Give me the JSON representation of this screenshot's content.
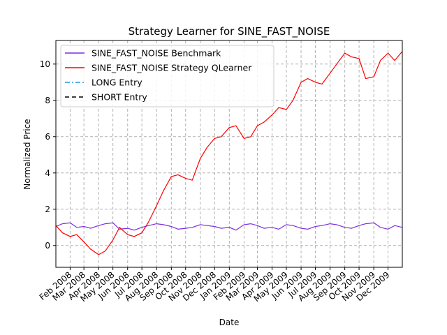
{
  "chart_data": {
    "type": "line",
    "title": "Strategy Learner for SINE_FAST_NOISE",
    "xlabel": "Date",
    "ylabel": "Normalized Price",
    "xlim": [
      "2008-01-02",
      "2009-12-31"
    ],
    "ylim": [
      -1.2,
      11.3
    ],
    "grid": true,
    "legend_position": "upper left",
    "y_ticks": [
      0,
      2,
      4,
      6,
      8,
      10
    ],
    "x_ticks": [
      {
        "date": "2008-02-01",
        "label": "Feb 2008"
      },
      {
        "date": "2008-03-01",
        "label": "Mar 2008"
      },
      {
        "date": "2008-04-01",
        "label": "Apr 2008"
      },
      {
        "date": "2008-05-01",
        "label": "May 2008"
      },
      {
        "date": "2008-06-01",
        "label": "Jun 2008"
      },
      {
        "date": "2008-07-01",
        "label": "Jul 2008"
      },
      {
        "date": "2008-08-01",
        "label": "Aug 2008"
      },
      {
        "date": "2008-09-01",
        "label": "Sep 2008"
      },
      {
        "date": "2008-10-01",
        "label": "Oct 2008"
      },
      {
        "date": "2008-11-01",
        "label": "Nov 2008"
      },
      {
        "date": "2008-12-01",
        "label": "Dec 2008"
      },
      {
        "date": "2009-01-01",
        "label": "Jan 2009"
      },
      {
        "date": "2009-02-01",
        "label": "Feb 2009"
      },
      {
        "date": "2009-03-01",
        "label": "Mar 2009"
      },
      {
        "date": "2009-04-01",
        "label": "Apr 2009"
      },
      {
        "date": "2009-05-01",
        "label": "May 2009"
      },
      {
        "date": "2009-06-01",
        "label": "Jun 2009"
      },
      {
        "date": "2009-07-01",
        "label": "Jul 2009"
      },
      {
        "date": "2009-08-01",
        "label": "Aug 2009"
      },
      {
        "date": "2009-09-01",
        "label": "Sep 2009"
      },
      {
        "date": "2009-10-01",
        "label": "Oct 2009"
      },
      {
        "date": "2009-11-01",
        "label": "Nov 2009"
      },
      {
        "date": "2009-12-01",
        "label": "Dec 2009"
      }
    ],
    "series": [
      {
        "name": "SINE_FAST_NOISE Benchmark",
        "color": "#7b2ee0",
        "style": "solid",
        "x": [
          "2008-01-02",
          "2008-01-16",
          "2008-02-01",
          "2008-02-15",
          "2008-03-01",
          "2008-03-15",
          "2008-04-01",
          "2008-04-15",
          "2008-05-01",
          "2008-05-15",
          "2008-06-01",
          "2008-06-15",
          "2008-07-01",
          "2008-07-15",
          "2008-08-01",
          "2008-08-15",
          "2008-09-01",
          "2008-09-15",
          "2008-10-01",
          "2008-10-15",
          "2008-11-01",
          "2008-11-15",
          "2008-12-01",
          "2008-12-15",
          "2009-01-01",
          "2009-01-15",
          "2009-02-01",
          "2009-02-15",
          "2009-03-01",
          "2009-03-15",
          "2009-04-01",
          "2009-04-15",
          "2009-05-01",
          "2009-05-15",
          "2009-06-01",
          "2009-06-15",
          "2009-07-01",
          "2009-07-15",
          "2009-08-01",
          "2009-08-15",
          "2009-09-01",
          "2009-09-15",
          "2009-10-01",
          "2009-10-15",
          "2009-11-01",
          "2009-11-15",
          "2009-12-01",
          "2009-12-15",
          "2009-12-31"
        ],
        "y": [
          1.05,
          1.2,
          1.25,
          1.0,
          1.05,
          0.95,
          1.1,
          1.2,
          1.25,
          0.9,
          0.95,
          0.85,
          1.0,
          1.1,
          1.2,
          1.15,
          1.05,
          0.9,
          0.95,
          1.0,
          1.15,
          1.1,
          1.05,
          0.95,
          1.0,
          0.85,
          1.15,
          1.2,
          1.1,
          0.95,
          1.0,
          0.9,
          1.15,
          1.1,
          0.95,
          0.9,
          1.05,
          1.1,
          1.2,
          1.15,
          1.0,
          0.95,
          1.1,
          1.2,
          1.25,
          1.0,
          0.9,
          1.1,
          1.0
        ]
      },
      {
        "name": "SINE_FAST_NOISE Strategy QLearner",
        "color": "#ff0000",
        "style": "solid",
        "x": [
          "2008-01-02",
          "2008-01-16",
          "2008-02-01",
          "2008-02-15",
          "2008-03-01",
          "2008-03-15",
          "2008-04-01",
          "2008-04-15",
          "2008-05-01",
          "2008-05-15",
          "2008-06-01",
          "2008-06-15",
          "2008-07-01",
          "2008-07-15",
          "2008-08-01",
          "2008-08-15",
          "2008-09-01",
          "2008-09-15",
          "2008-10-01",
          "2008-10-15",
          "2008-11-01",
          "2008-11-15",
          "2008-12-01",
          "2008-12-15",
          "2009-01-01",
          "2009-01-15",
          "2009-02-01",
          "2009-02-15",
          "2009-03-01",
          "2009-03-15",
          "2009-04-01",
          "2009-04-15",
          "2009-05-01",
          "2009-05-15",
          "2009-06-01",
          "2009-06-15",
          "2009-07-01",
          "2009-07-15",
          "2009-08-01",
          "2009-08-15",
          "2009-09-01",
          "2009-09-15",
          "2009-10-01",
          "2009-10-15",
          "2009-11-01",
          "2009-11-15",
          "2009-12-01",
          "2009-12-15",
          "2009-12-31"
        ],
        "y": [
          1.1,
          0.7,
          0.5,
          0.6,
          0.2,
          -0.2,
          -0.5,
          -0.3,
          0.3,
          1.0,
          0.6,
          0.5,
          0.7,
          1.3,
          2.2,
          3.0,
          3.8,
          3.9,
          3.7,
          3.6,
          4.8,
          5.4,
          5.9,
          6.0,
          6.5,
          6.6,
          5.9,
          6.0,
          6.6,
          6.8,
          7.2,
          7.6,
          7.5,
          8.0,
          9.0,
          9.2,
          9.0,
          8.9,
          9.5,
          10.0,
          10.6,
          10.4,
          10.3,
          9.2,
          9.3,
          10.2,
          10.6,
          10.2,
          10.7
        ]
      },
      {
        "name": "LONG Entry",
        "color": "#1f9bde",
        "style": "dashdot",
        "x": [],
        "y": []
      },
      {
        "name": "SHORT Entry",
        "color": "#000000",
        "style": "dashed",
        "x": [],
        "y": []
      }
    ]
  }
}
